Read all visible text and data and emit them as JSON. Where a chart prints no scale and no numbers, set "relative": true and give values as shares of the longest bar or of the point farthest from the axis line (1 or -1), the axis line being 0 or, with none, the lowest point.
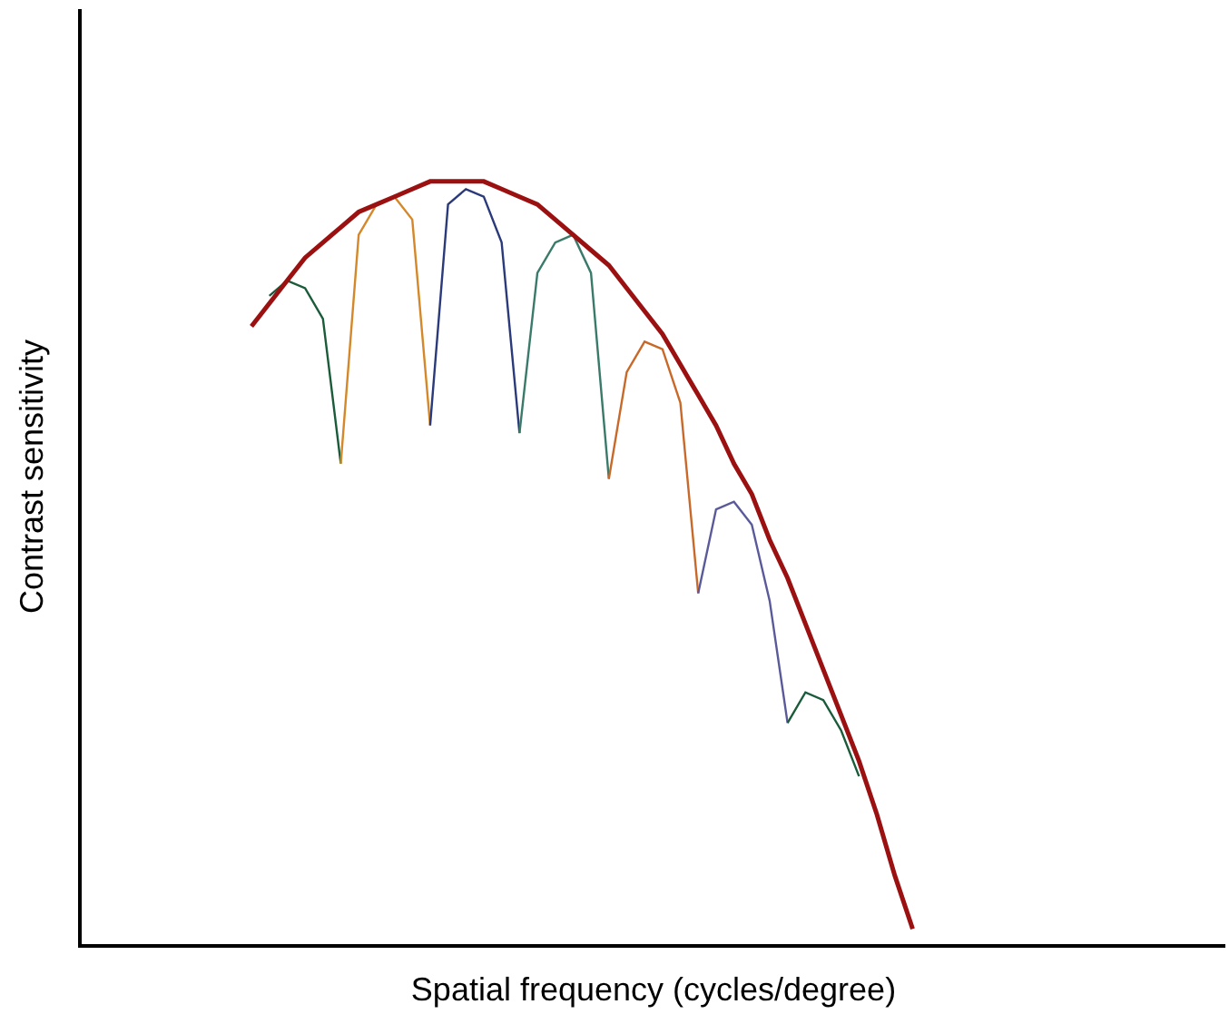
{
  "chart_data": {
    "type": "line",
    "relative": true,
    "xlabel": "Spatial frequency (cycles/degree)",
    "ylabel": "Contrast sensitivity",
    "marker": "none",
    "categories": [
      null,
      null,
      null,
      null,
      null,
      null,
      null,
      null,
      null,
      null,
      null,
      null,
      null,
      null,
      null,
      null,
      null,
      null,
      null,
      null,
      null,
      null,
      null,
      null,
      null,
      null,
      null,
      null,
      null,
      null,
      null,
      null,
      null,
      null,
      null,
      null,
      null,
      null,
      null,
      null,
      null,
      null,
      null,
      null,
      null,
      null,
      null,
      null,
      null,
      null,
      null,
      null,
      null,
      null,
      null,
      null,
      null,
      null,
      null,
      null,
      null,
      null,
      null,
      null
    ],
    "series": [
      {
        "color": "#1a5c3a",
        "values": [
          null,
          null,
          null,
          null,
          null,
          null,
          null,
          null,
          null,
          null,
          0.85,
          0.87,
          0.86,
          0.82,
          0.63,
          null,
          null,
          null,
          null,
          null,
          null,
          null,
          null,
          null,
          null,
          null,
          null,
          null,
          null,
          null,
          null,
          null,
          null,
          null,
          null,
          null,
          null,
          null,
          null,
          null,
          null,
          null,
          null,
          null,
          null,
          null,
          null,
          null,
          null,
          null,
          null,
          null,
          null,
          null,
          null,
          null,
          null,
          null,
          null,
          null,
          null,
          null,
          null,
          null
        ]
      },
      {
        "color": "#d4882a",
        "values": [
          null,
          null,
          null,
          null,
          null,
          null,
          null,
          null,
          null,
          null,
          null,
          null,
          null,
          null,
          0.63,
          0.93,
          0.97,
          0.98,
          0.95,
          0.68,
          null,
          null,
          null,
          null,
          null,
          null,
          null,
          null,
          null,
          null,
          null,
          null,
          null,
          null,
          null,
          null,
          null,
          null,
          null,
          null,
          null,
          null,
          null,
          null,
          null,
          null,
          null,
          null,
          null,
          null,
          null,
          null,
          null,
          null,
          null,
          null,
          null,
          null,
          null,
          null,
          null,
          null,
          null,
          null
        ]
      },
      {
        "color": "#2a3a7a",
        "values": [
          null,
          null,
          null,
          null,
          null,
          null,
          null,
          null,
          null,
          null,
          null,
          null,
          null,
          null,
          null,
          null,
          null,
          null,
          null,
          0.68,
          0.97,
          0.99,
          0.98,
          0.92,
          0.67,
          null,
          null,
          null,
          null,
          null,
          null,
          null,
          null,
          null,
          null,
          null,
          null,
          null,
          null,
          null,
          null,
          null,
          null,
          null,
          null,
          null,
          null,
          null,
          null,
          null,
          null,
          null,
          null,
          null,
          null,
          null,
          null,
          null,
          null,
          null,
          null,
          null,
          null,
          null
        ]
      },
      {
        "color": "#3a7a6a",
        "values": [
          null,
          null,
          null,
          null,
          null,
          null,
          null,
          null,
          null,
          null,
          null,
          null,
          null,
          null,
          null,
          null,
          null,
          null,
          null,
          null,
          null,
          null,
          null,
          null,
          0.67,
          0.88,
          0.92,
          0.93,
          0.88,
          0.61,
          null,
          null,
          null,
          null,
          null,
          null,
          null,
          null,
          null,
          null,
          null,
          null,
          null,
          null,
          null,
          null,
          null,
          null,
          null,
          null,
          null,
          null,
          null,
          null,
          null,
          null,
          null,
          null,
          null,
          null,
          null,
          null,
          null,
          null
        ]
      },
      {
        "color": "#c8692a",
        "values": [
          null,
          null,
          null,
          null,
          null,
          null,
          null,
          null,
          null,
          null,
          null,
          null,
          null,
          null,
          null,
          null,
          null,
          null,
          null,
          null,
          null,
          null,
          null,
          null,
          null,
          null,
          null,
          null,
          null,
          0.61,
          0.75,
          0.79,
          0.78,
          0.71,
          0.46,
          null,
          null,
          null,
          null,
          null,
          null,
          null,
          null,
          null,
          null,
          null,
          null,
          null,
          null,
          null,
          null,
          null,
          null,
          null,
          null,
          null,
          null,
          null,
          null,
          null,
          null,
          null,
          null,
          null
        ]
      },
      {
        "color": "#5a5a9a",
        "values": [
          null,
          null,
          null,
          null,
          null,
          null,
          null,
          null,
          null,
          null,
          null,
          null,
          null,
          null,
          null,
          null,
          null,
          null,
          null,
          null,
          null,
          null,
          null,
          null,
          null,
          null,
          null,
          null,
          null,
          null,
          null,
          null,
          null,
          null,
          0.46,
          0.57,
          0.58,
          0.55,
          0.45,
          0.29,
          null,
          null,
          null,
          null,
          null,
          null,
          null,
          null,
          null,
          null,
          null,
          null,
          null,
          null,
          null,
          null,
          null,
          null,
          null,
          null,
          null,
          null,
          null,
          null
        ]
      },
      {
        "color": "#1a5c3a",
        "values": [
          null,
          null,
          null,
          null,
          null,
          null,
          null,
          null,
          null,
          null,
          null,
          null,
          null,
          null,
          null,
          null,
          null,
          null,
          null,
          null,
          null,
          null,
          null,
          null,
          null,
          null,
          null,
          null,
          null,
          null,
          null,
          null,
          null,
          null,
          null,
          null,
          null,
          null,
          null,
          0.29,
          0.33,
          0.32,
          0.28,
          0.22,
          null,
          null,
          null,
          null,
          null,
          null,
          null,
          null,
          null,
          null,
          null,
          null,
          null,
          null,
          null,
          null,
          null,
          null,
          null,
          null
        ]
      },
      {
        "color": "#9b1010",
        "values": [
          null,
          null,
          null,
          null,
          null,
          null,
          null,
          null,
          null,
          0.81,
          0.84,
          0.87,
          0.9,
          0.92,
          0.94,
          0.96,
          0.97,
          0.98,
          0.99,
          1.0,
          1.0,
          1.0,
          1.0,
          0.99,
          0.98,
          0.97,
          0.95,
          0.93,
          0.91,
          0.89,
          0.86,
          0.83,
          0.8,
          0.76,
          0.72,
          0.68,
          0.63,
          0.59,
          0.53,
          0.48,
          0.42,
          0.36,
          0.3,
          0.24,
          0.17,
          0.09,
          0.02,
          null,
          null,
          null,
          null,
          null,
          null,
          null,
          null,
          null,
          null,
          null,
          null,
          null,
          null,
          null,
          null,
          null
        ]
      }
    ]
  }
}
